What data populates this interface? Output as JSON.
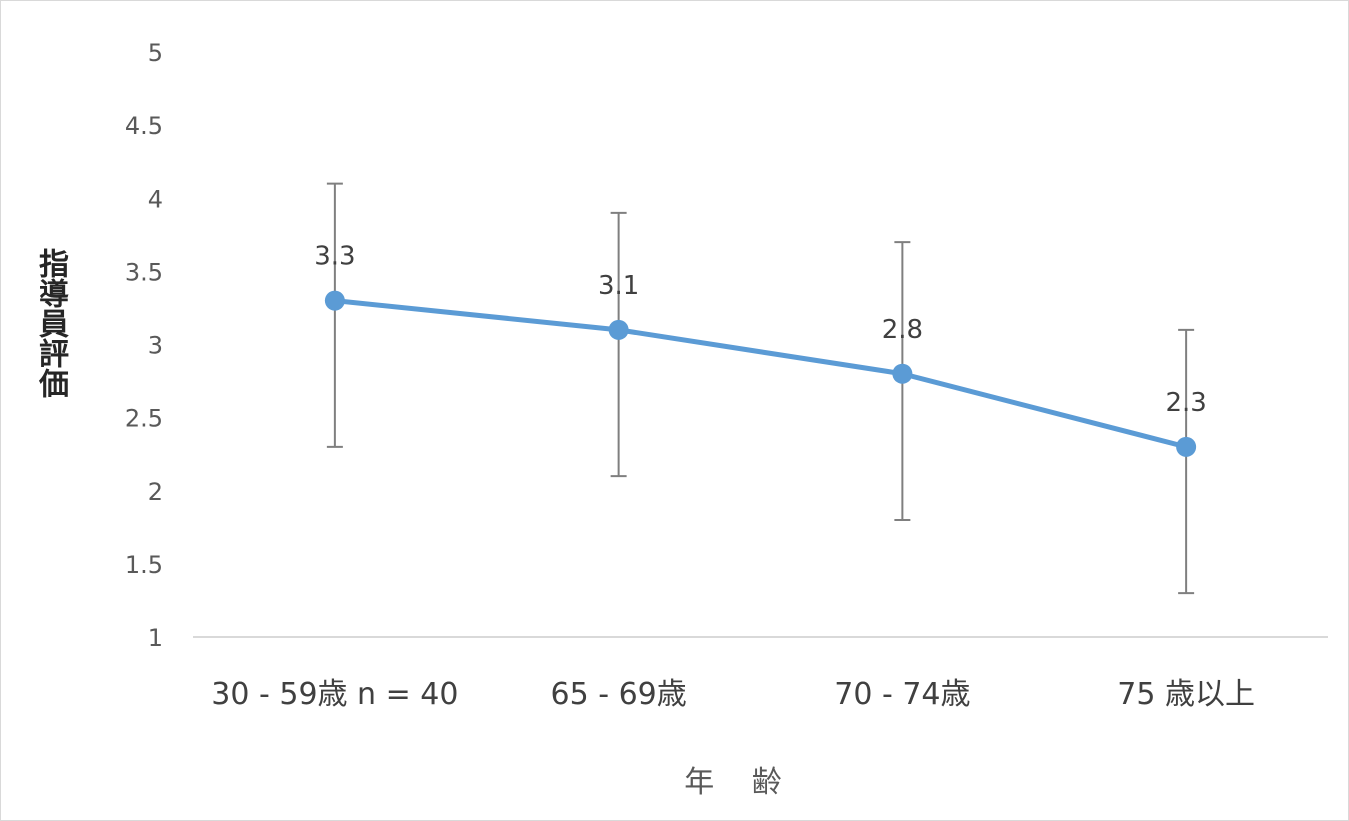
{
  "chart_data": {
    "type": "line",
    "categories": [
      "30 - 59歳 n = 40",
      "65 - 69歳",
      "70 - 74歳",
      "75 歳以上"
    ],
    "series": [
      {
        "values": [
          3.3,
          3.1,
          2.8,
          2.3
        ],
        "error_low": [
          2.3,
          2.1,
          1.8,
          1.3
        ],
        "error_high": [
          4.1,
          3.9,
          3.7,
          3.1
        ],
        "color": "#5b9bd5"
      }
    ],
    "data_labels": [
      "3.3",
      "3.1",
      "2.8",
      "2.3"
    ],
    "xlabel": "年 齢",
    "ylabel": "指導員評価",
    "ylim": [
      1,
      5
    ],
    "yticks": [
      "1",
      "1.5",
      "2",
      "2.5",
      "3",
      "3.5",
      "4",
      "4.5",
      "5"
    ],
    "grid": false,
    "legend": "none",
    "error_bar_color": "#7f7f7f",
    "axis_color": "#d9d9d9"
  }
}
